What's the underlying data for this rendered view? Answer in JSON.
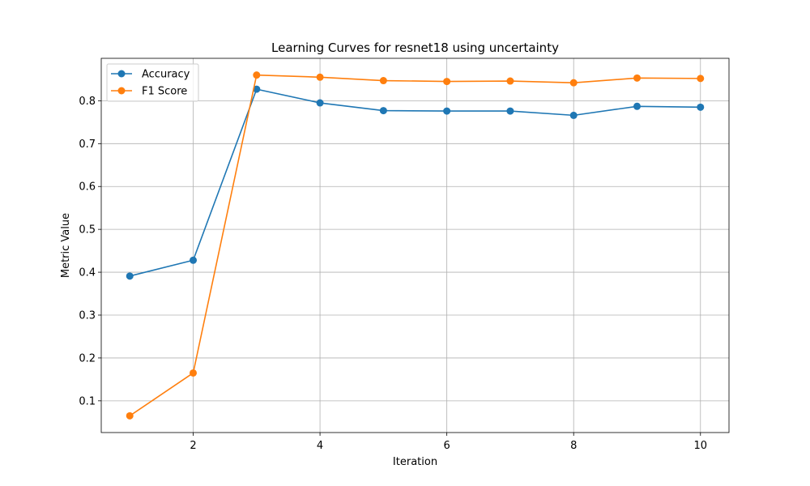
{
  "chart_data": {
    "type": "line",
    "title": "Learning Curves for resnet18 using uncertainty",
    "xlabel": "Iteration",
    "ylabel": "Metric Value",
    "x": [
      1,
      2,
      3,
      4,
      5,
      6,
      7,
      8,
      9,
      10
    ],
    "xlim": [
      0.55,
      10.45
    ],
    "ylim": [
      0.026,
      0.899
    ],
    "xticks": [
      2,
      4,
      6,
      8,
      10
    ],
    "yticks": [
      0.1,
      0.2,
      0.3,
      0.4,
      0.5,
      0.6,
      0.7,
      0.8
    ],
    "grid": true,
    "legend_position": "top-left",
    "series": [
      {
        "name": "Accuracy",
        "color": "#1f77b4",
        "marker": "circle",
        "values": [
          0.391,
          0.428,
          0.827,
          0.795,
          0.777,
          0.776,
          0.776,
          0.766,
          0.787,
          0.785
        ]
      },
      {
        "name": "F1 Score",
        "color": "#ff7f0e",
        "marker": "circle",
        "values": [
          0.065,
          0.165,
          0.86,
          0.855,
          0.847,
          0.845,
          0.846,
          0.842,
          0.853,
          0.852
        ]
      }
    ]
  }
}
